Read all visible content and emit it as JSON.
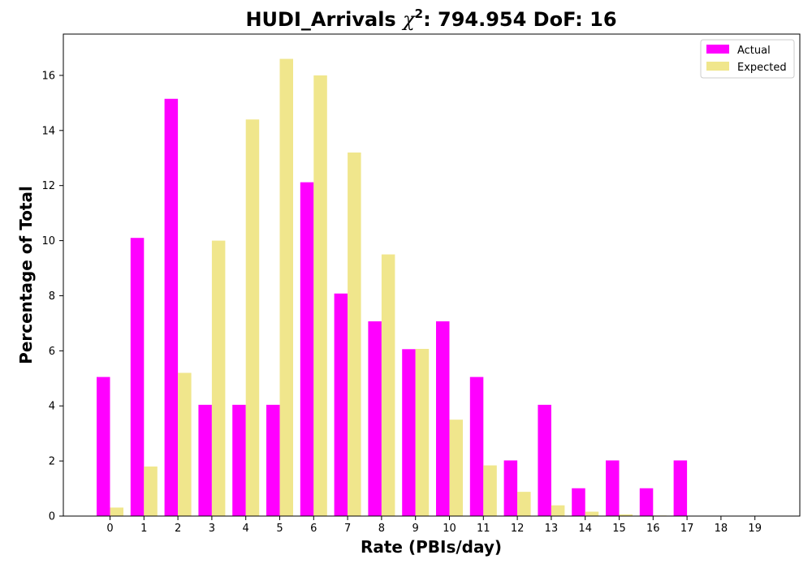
{
  "chart_data": {
    "type": "bar",
    "title_prefix": "HUDI_Arrivals ",
    "title_chi": "χ",
    "title_sup": "2",
    "title_suffix": ": 794.954 DoF: 16",
    "xlabel": "Rate (PBIs/day)",
    "ylabel": "Percentage of Total",
    "categories": [
      "0",
      "1",
      "2",
      "3",
      "4",
      "5",
      "6",
      "7",
      "8",
      "9",
      "10",
      "11",
      "12",
      "13",
      "14",
      "15",
      "16",
      "17",
      "18",
      "19"
    ],
    "ylim": [
      0,
      17.5
    ],
    "yticks": [
      0,
      2,
      4,
      6,
      8,
      10,
      12,
      14,
      16
    ],
    "grid": false,
    "legend_position": "top-right",
    "series": [
      {
        "name": "Actual",
        "color": "#ff00ff",
        "values": [
          5.05,
          10.1,
          15.15,
          4.04,
          4.04,
          4.04,
          12.12,
          8.08,
          7.07,
          6.06,
          7.07,
          5.05,
          2.02,
          4.04,
          1.01,
          2.02,
          1.01,
          2.02,
          0,
          0
        ]
      },
      {
        "name": "Expected",
        "color": "#f0e68c",
        "values": [
          0.31,
          1.8,
          5.2,
          10.0,
          14.4,
          16.6,
          16.0,
          13.2,
          9.5,
          6.07,
          3.5,
          1.84,
          0.88,
          0.39,
          0.16,
          0.06,
          0.02,
          0.01,
          0,
          0
        ]
      }
    ]
  }
}
